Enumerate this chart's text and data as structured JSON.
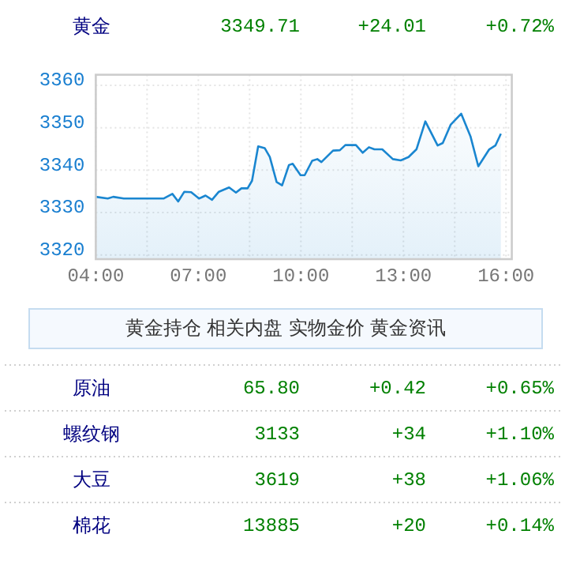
{
  "chart_data": [
    {
      "type": "other",
      "annotations": [
        "黄金",
        "3349.71",
        "+24.01",
        "+0.72%"
      ],
      "colors": [
        "#000080",
        "#008000",
        "#008000",
        "#008000"
      ]
    },
    {
      "type": "area",
      "x": [
        4.0,
        4.35,
        4.51,
        4.82,
        5.98,
        6.24,
        6.41,
        6.59,
        6.79,
        7.02,
        7.21,
        7.4,
        7.6,
        7.9,
        8.1,
        8.26,
        8.44,
        8.57,
        8.75,
        8.94,
        9.09,
        9.29,
        9.45,
        9.65,
        9.76,
        9.99,
        10.11,
        10.33,
        10.48,
        10.6,
        10.94,
        11.14,
        11.3,
        11.61,
        11.81,
        11.99,
        12.15,
        12.38,
        12.69,
        12.92,
        13.15,
        13.38,
        13.64,
        14.0,
        14.15,
        14.38,
        14.69,
        14.96,
        15.19,
        15.51,
        15.69,
        15.85
      ],
      "series": [
        {
          "color": "#1a86d0",
          "values": [
            3333.7,
            3333.3,
            3333.7,
            3333.3,
            3333.3,
            3334.4,
            3332.6,
            3334.9,
            3334.8,
            3333.3,
            3334.0,
            3333.0,
            3334.9,
            3335.9,
            3334.7,
            3335.7,
            3335.7,
            3337.5,
            3345.6,
            3345.2,
            3343.1,
            3337.2,
            3336.4,
            3341.2,
            3341.5,
            3338.8,
            3338.8,
            3342.2,
            3342.6,
            3341.9,
            3344.6,
            3344.7,
            3345.9,
            3345.9,
            3344.1,
            3345.4,
            3344.9,
            3344.9,
            3342.6,
            3342.3,
            3343.1,
            3344.9,
            3351.5,
            3345.8,
            3346.4,
            3350.7,
            3353.3,
            3348.0,
            3340.9,
            3344.9,
            3345.8,
            3348.6
          ]
        }
      ],
      "xlim": [
        4,
        16.17
      ],
      "ylim": [
        3319,
        3362.5
      ],
      "xticks": [
        {
          "value": 4,
          "label": "04:00"
        },
        {
          "value": 5.5,
          "label": null
        },
        {
          "value": 7,
          "label": "07:00"
        },
        {
          "value": 8.5,
          "label": null
        },
        {
          "value": 10,
          "label": "10:00"
        },
        {
          "value": 11.5,
          "label": null
        },
        {
          "value": 13,
          "label": "13:00"
        },
        {
          "value": 14.5,
          "label": null
        },
        {
          "value": 16,
          "label": "16:00"
        }
      ],
      "yticks": [
        3320,
        3330,
        3340,
        3350,
        3360
      ],
      "grid": true,
      "marker": "none",
      "line_style": "solid"
    },
    {
      "type": "other",
      "annotations": [
        "黄金持仓",
        "相关内盘",
        "实物金价",
        "黄金资讯",
        "原油",
        "65.80",
        "+0.42",
        "+0.65%",
        "螺纹钢",
        "3133",
        "+34",
        "+1.10%",
        "大豆",
        "3619",
        "+38",
        "+1.06%",
        "棉花",
        "13885",
        "+20",
        "+0.14%"
      ],
      "colors": [
        "#333333",
        "#000080",
        "#008000",
        "#008000",
        "#008000"
      ]
    }
  ]
}
